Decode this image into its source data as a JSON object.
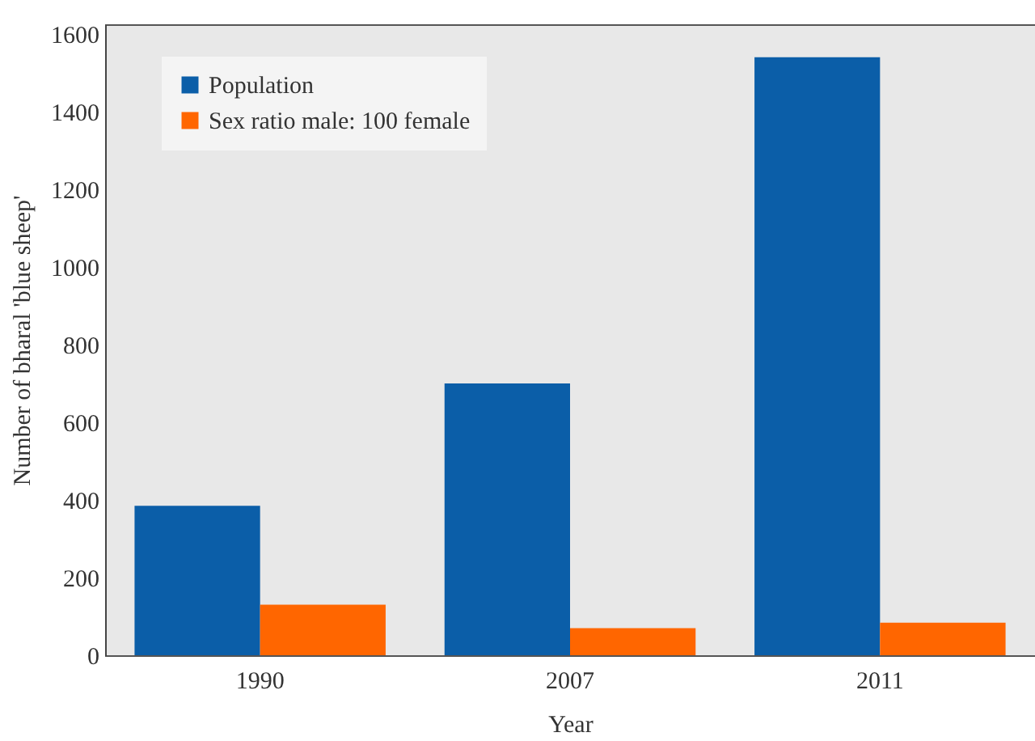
{
  "chart_data": {
    "type": "bar",
    "xlabel": "Year",
    "ylabel": "Number of bharal 'blue sheep'",
    "categories": [
      "1990",
      "2007",
      "2011"
    ],
    "series": [
      {
        "name": "Population",
        "color": "#0b5ea8",
        "values": [
          385,
          700,
          1540
        ]
      },
      {
        "name": "Sex ratio male: 100 female",
        "color": "#ff6600",
        "values": [
          130,
          70,
          84
        ]
      }
    ],
    "ylim": [
      0,
      1625
    ],
    "yticks": [
      0,
      200,
      400,
      600,
      800,
      1000,
      1200,
      1400,
      1600
    ],
    "grid": false,
    "legend": "top left"
  }
}
